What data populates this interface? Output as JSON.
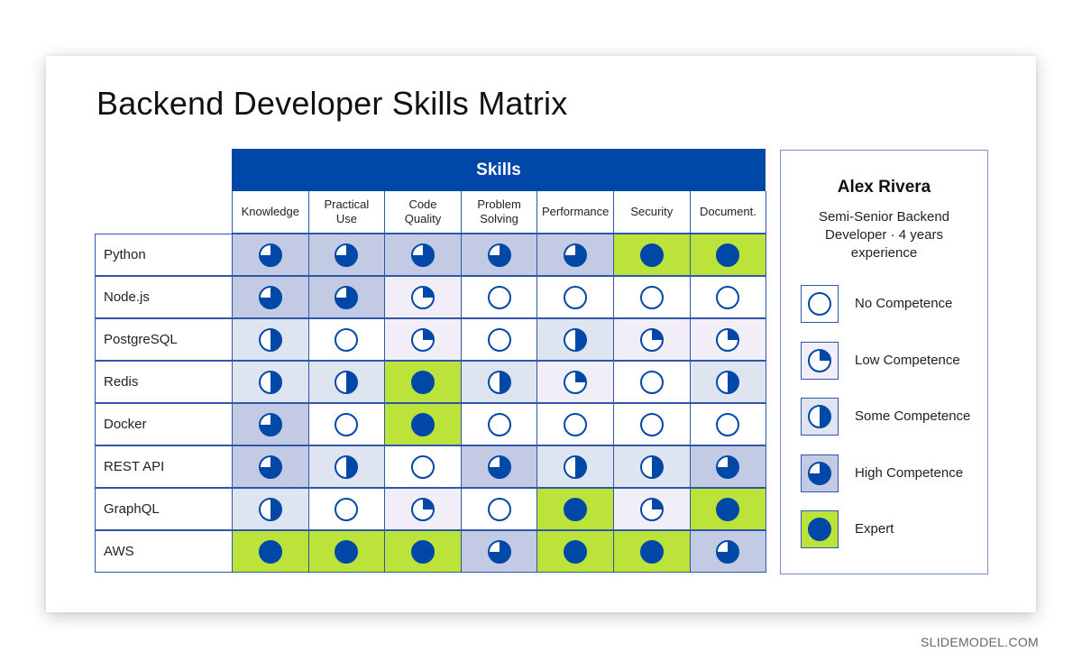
{
  "title": "Backend Developer Skills Matrix",
  "skills_header": "Skills",
  "columns": [
    "Knowledge",
    "Practical Use",
    "Code Quality",
    "Problem Solving",
    "Performance",
    "Security",
    "Document."
  ],
  "rows": [
    {
      "label": "Python",
      "levels": [
        3,
        3,
        3,
        3,
        3,
        4,
        4
      ]
    },
    {
      "label": "Node.js",
      "levels": [
        3,
        3,
        1,
        0,
        0,
        0,
        0
      ]
    },
    {
      "label": "PostgreSQL",
      "levels": [
        2,
        0,
        1,
        0,
        2,
        1,
        1
      ]
    },
    {
      "label": "Redis",
      "levels": [
        2,
        2,
        4,
        2,
        1,
        0,
        2
      ]
    },
    {
      "label": "Docker",
      "levels": [
        3,
        0,
        4,
        0,
        0,
        0,
        0
      ]
    },
    {
      "label": "REST API",
      "levels": [
        3,
        2,
        0,
        3,
        2,
        2,
        3
      ]
    },
    {
      "label": "GraphQL",
      "levels": [
        2,
        0,
        1,
        0,
        4,
        1,
        4
      ]
    },
    {
      "label": "AWS",
      "levels": [
        4,
        4,
        4,
        3,
        4,
        4,
        3
      ]
    }
  ],
  "profile": {
    "name": "Alex Rivera",
    "role": "Semi-Senior Backend Developer · 4 years experience"
  },
  "legend": [
    {
      "level": 0,
      "label": "No Competence",
      "icon": "empty-circle-icon"
    },
    {
      "level": 1,
      "label": "Low Competence",
      "icon": "quarter-circle-icon"
    },
    {
      "level": 2,
      "label": "Some Competence",
      "icon": "half-circle-icon"
    },
    {
      "level": 3,
      "label": "High Competence",
      "icon": "three-quarter-circle-icon"
    },
    {
      "level": 4,
      "label": "Expert",
      "icon": "full-circle-icon"
    }
  ],
  "colors": {
    "primary": "#0048a8",
    "level_0": "#ffffff",
    "level_1": "#f2eef8",
    "level_2": "#dfe4f1",
    "level_3": "#c2cbe3",
    "level_4": "#bbe33a"
  },
  "watermark": "SLIDEMODEL.COM"
}
